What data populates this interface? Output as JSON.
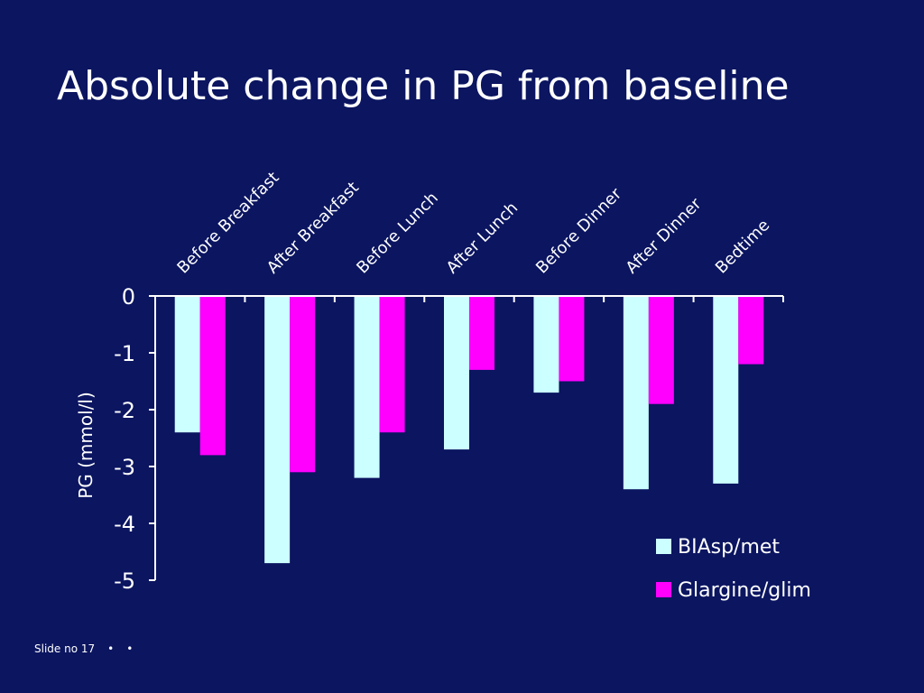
{
  "title": "Absolute change in PG from baseline",
  "footer": {
    "slide_label": "Slide no 17",
    "dots": [
      "•",
      "•"
    ]
  },
  "colors": {
    "background": "#0b1560",
    "series1": "#ccffff",
    "series2": "#ff00ff",
    "text": "#ffffff"
  },
  "chart_data": {
    "type": "bar",
    "categories": [
      "Before Breakfast",
      "After Breakfast",
      "Before Lunch",
      "After Lunch",
      "Before Dinner",
      "After Dinner",
      "Bedtime"
    ],
    "series": [
      {
        "name": "BIAsp/met",
        "color": "#ccffff",
        "values": [
          -2.4,
          -4.7,
          -3.2,
          -2.7,
          -1.7,
          -3.4,
          -3.3
        ]
      },
      {
        "name": "Glargine/glim",
        "color": "#ff00ff",
        "values": [
          -2.8,
          -3.1,
          -2.4,
          -1.3,
          -1.5,
          -1.9,
          -1.2
        ]
      }
    ],
    "ylabel": "PG (mmol/l)",
    "xlabel": "",
    "ylim": [
      -5,
      0
    ],
    "yticks": [
      "0",
      "-1",
      "-2",
      "-3",
      "-4",
      "-5"
    ],
    "category_axis_position": "top",
    "grid": false,
    "legend_position": "bottom-right"
  }
}
